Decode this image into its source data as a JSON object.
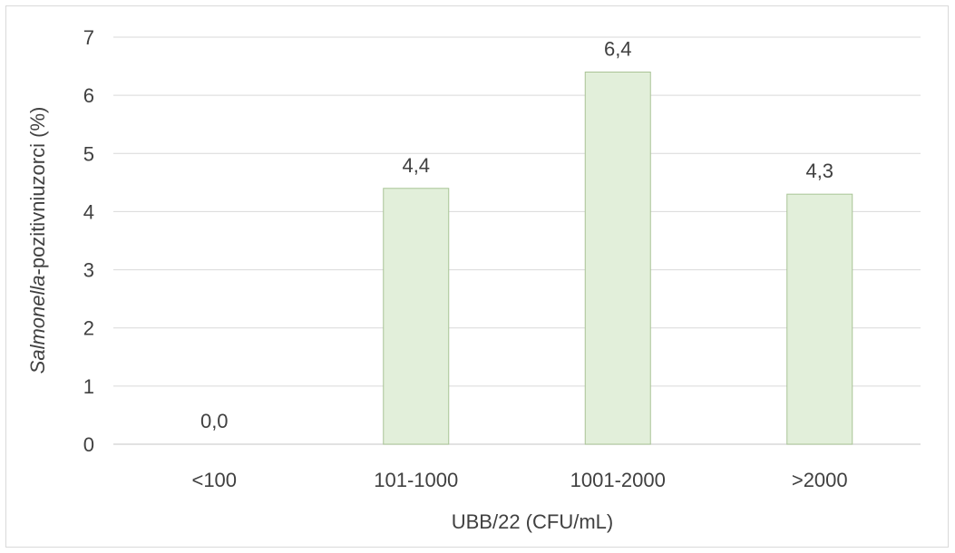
{
  "chart_data": {
    "type": "bar",
    "categories": [
      "<100",
      "101-1000",
      "1001-2000",
      ">2000"
    ],
    "values": [
      0.0,
      4.4,
      6.4,
      4.3
    ],
    "data_labels": [
      "0,0",
      "4,4",
      "6,4",
      "4,3"
    ],
    "xlabel": "UBB/22 (CFU/mL)",
    "ylabel_italic": "Salmonella",
    "ylabel_rest": "-pozitivniuzorci (%)",
    "ylim": [
      0,
      7
    ],
    "yticks": [
      "0",
      "1",
      "2",
      "3",
      "4",
      "5",
      "6",
      "7"
    ],
    "grid": true,
    "legend": "none",
    "colors": {
      "bar_fill": "#e2efda",
      "bar_stroke": "#a9c496",
      "grid": "#d9d9d9"
    }
  }
}
